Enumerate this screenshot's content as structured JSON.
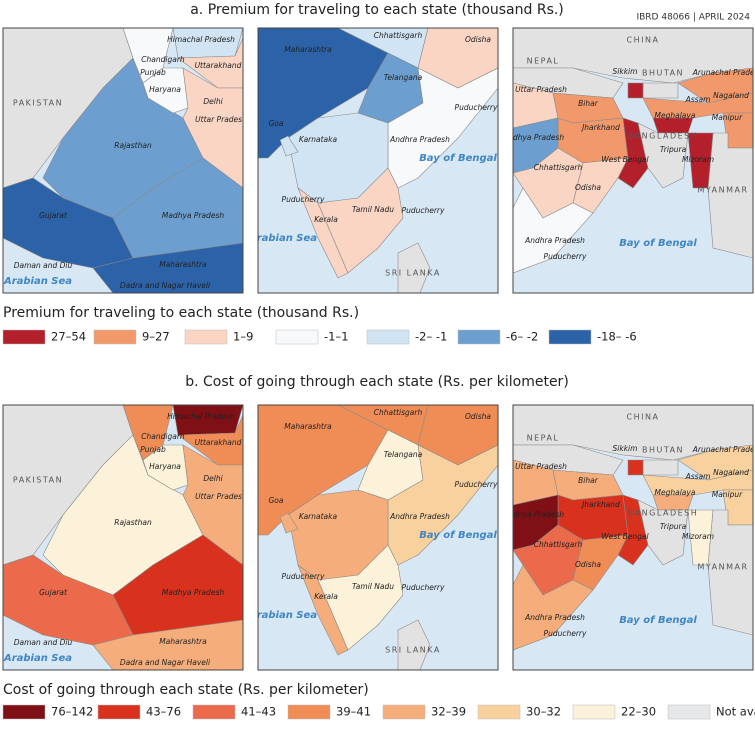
{
  "header": {
    "code": "IBRD 48066 | APRIL 2024"
  },
  "panels": [
    {
      "title": "a. Premium for traveling to each state (thousand Rs.)",
      "legend_title": "Premium for traveling to each state (thousand Rs.)",
      "legend": [
        {
          "label": "27–54",
          "color": "#b31f2a"
        },
        {
          "label": "9–27",
          "color": "#f1996b"
        },
        {
          "label": "1–9",
          "color": "#fad5c4"
        },
        {
          "label": "-1–1",
          "color": "#f7f9fb"
        },
        {
          "label": "-2– -1",
          "color": "#d1e4f3"
        },
        {
          "label": "-6– -2",
          "color": "#6c9fcf"
        },
        {
          "label": "-18– -6",
          "color": "#2b62a8"
        }
      ],
      "maps": [
        {
          "labels": [
            "PAKISTAN",
            "Himachal Pradesh",
            "Chandigarh",
            "Punjab",
            "Uttarakhand",
            "Haryana",
            "Delhi",
            "Uttar Pradesh",
            "Rajasthan",
            "Gujarat",
            "Madhya Pradesh",
            "Maharashtra",
            "Daman and Diu",
            "Dadra and Nagar Haveli",
            "Arabian Sea"
          ]
        },
        {
          "labels": [
            "Maharashtra",
            "Chhattisgarh",
            "Odisha",
            "Telangana",
            "Goa",
            "Karnataka",
            "Andhra Pradesh",
            "Puducherry",
            "Bay of Bengal",
            "Puducherry",
            "Kerala",
            "Tamil Nadu",
            "Puducherry",
            "Arabian Sea",
            "SRI LANKA"
          ]
        },
        {
          "labels": [
            "CHINA",
            "NEPAL",
            "Sikkim",
            "BHUTAN",
            "Arunachal Pradesh",
            "Nagaland",
            "Uttar Pradesh",
            "Bihar",
            "Assam",
            "Meghalaya",
            "Manipur",
            "Madhya Pradesh",
            "Jharkhand",
            "BANGLADESH",
            "Tripura",
            "Mizoram",
            "West Bengal",
            "Chhattisgarh",
            "Odisha",
            "MYANMAR",
            "Andhra Pradesh",
            "Bay of Bengal",
            "Puducherry"
          ]
        }
      ]
    },
    {
      "title": "b. Cost of going through each state (Rs. per kilometer)",
      "legend_title": "Cost of going through each state (Rs. per kilometer)",
      "legend": [
        {
          "label": "76–142",
          "color": "#7e1016"
        },
        {
          "label": "43–76",
          "color": "#d8321f"
        },
        {
          "label": "41–43",
          "color": "#ea6a4b"
        },
        {
          "label": "39–41",
          "color": "#f08d57"
        },
        {
          "label": "32–39",
          "color": "#f5ae7b"
        },
        {
          "label": "30–32",
          "color": "#f9d19f"
        },
        {
          "label": "22–30",
          "color": "#fcf1d9"
        },
        {
          "label": "Not available",
          "color": "#e6e7e9"
        }
      ],
      "maps": [
        {
          "labels": [
            "PAKISTAN",
            "Himachal Pradesh",
            "Chandigarh",
            "Punjab",
            "Uttarakhand",
            "Haryana",
            "Delhi",
            "Uttar Pradesh",
            "Rajasthan",
            "Gujarat",
            "Madhya Pradesh",
            "Maharashtra",
            "Daman and Diu",
            "Dadra and Nagar Haveli",
            "Arabian Sea"
          ]
        },
        {
          "labels": [
            "Maharashtra",
            "Chhattisgarh",
            "Odisha",
            "Telangana",
            "Goa",
            "Karnataka",
            "Andhra Pradesh",
            "Puducherry",
            "Bay of Bengal",
            "Puducherry",
            "Kerala",
            "Tamil Nadu",
            "Puducherry",
            "Arabian Sea",
            "SRI LANKA"
          ]
        },
        {
          "labels": [
            "CHINA",
            "NEPAL",
            "Sikkim",
            "BHUTAN",
            "Arunachal Pradesh",
            "Nagaland",
            "Uttar Pradesh",
            "Bihar",
            "Assam",
            "Meghalaya",
            "Manipur",
            "Madhya Pradesh",
            "Jharkhand",
            "BANGLADESH",
            "Tripura",
            "Mizoram",
            "West Bengal",
            "Chhattisgarh",
            "Odisha",
            "MYANMAR",
            "Andhra Pradesh",
            "Bay of Bengal",
            "Puducherry"
          ]
        }
      ]
    }
  ]
}
